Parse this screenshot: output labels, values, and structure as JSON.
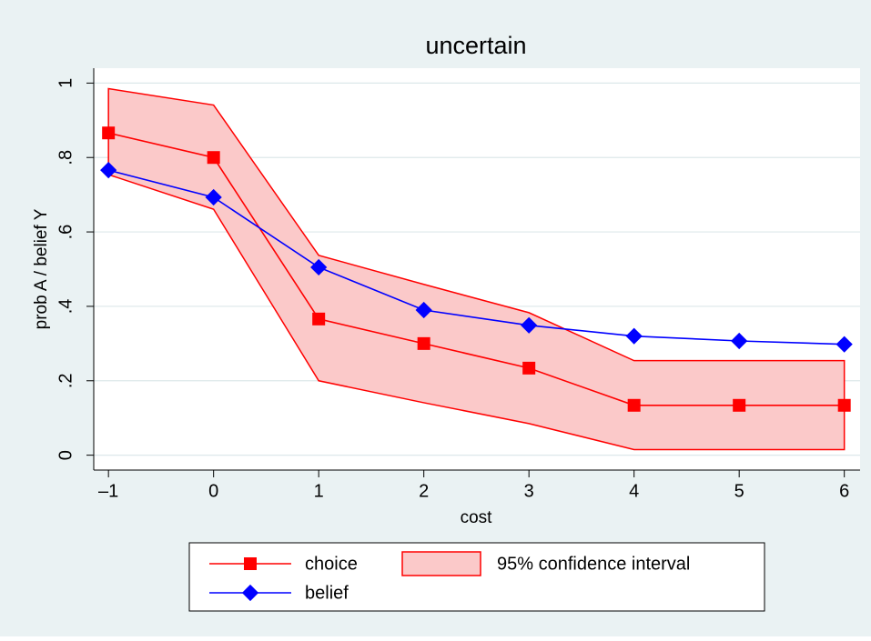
{
  "chart_data": {
    "type": "line",
    "title": "uncertain",
    "x_label": "cost",
    "y_label": "prob A / belief Y",
    "x": [
      -1,
      0,
      1,
      2,
      3,
      4,
      5,
      6
    ],
    "series": [
      {
        "name": "choice",
        "color": "#ff0000",
        "marker": "square",
        "values": [
          0.866,
          0.8,
          0.366,
          0.3,
          0.234,
          0.134,
          0.134,
          0.134
        ]
      },
      {
        "name": "belief",
        "color": "#0000ff",
        "marker": "diamond",
        "values": [
          0.766,
          0.693,
          0.505,
          0.39,
          0.349,
          0.32,
          0.307,
          0.298
        ]
      }
    ],
    "band": {
      "name": "95% confidence interval",
      "color": "#ff0000",
      "fill": "#fbc9c9",
      "upper": [
        0.985,
        0.941,
        0.537,
        0.459,
        0.383,
        0.254,
        0.254,
        0.254
      ],
      "lower": [
        0.754,
        0.661,
        0.2,
        0.141,
        0.085,
        0.015,
        0.015,
        0.015
      ]
    },
    "xlim": [
      -1.14,
      6.15
    ],
    "ylim": [
      -0.04,
      1.04
    ],
    "xticks": [
      {
        "value": -1,
        "label": "–1"
      },
      0,
      1,
      2,
      3,
      4,
      5,
      6
    ],
    "yticks": [
      0,
      {
        "value": 0.2,
        "label": ".2"
      },
      {
        "value": 0.4,
        "label": ".4"
      },
      {
        "value": 0.6,
        "label": ".6"
      },
      {
        "value": 0.8,
        "label": ".8"
      },
      1
    ],
    "grid": true
  }
}
